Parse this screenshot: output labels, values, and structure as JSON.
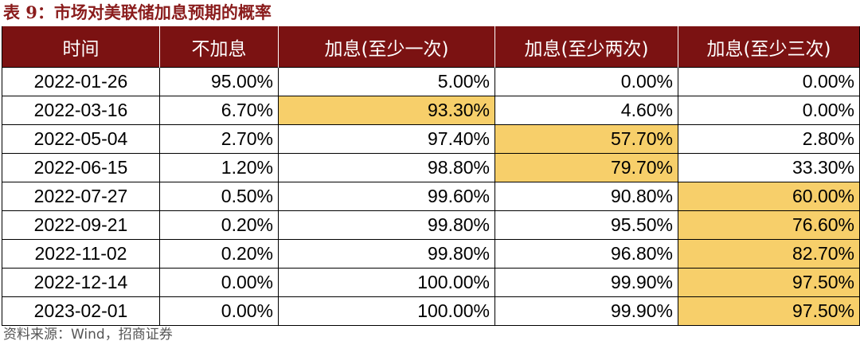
{
  "caption": "表 9：市场对美联储加息预期的概率",
  "source": "资料来源：Wind，招商证券",
  "highlight_color": "#f7cf6a",
  "header_color": "#7b1212",
  "columns": [
    "时间",
    "不加息",
    "加息(至少一次)",
    "加息(至少两次)",
    "加息(至少三次)"
  ],
  "rows": [
    {
      "date": "2022-01-26",
      "values": [
        "95.00%",
        "5.00%",
        "0.00%",
        "0.00%"
      ],
      "highlight": []
    },
    {
      "date": "2022-03-16",
      "values": [
        "6.70%",
        "93.30%",
        "4.60%",
        "0.00%"
      ],
      "highlight": [
        1
      ]
    },
    {
      "date": "2022-05-04",
      "values": [
        "2.70%",
        "97.40%",
        "57.70%",
        "2.80%"
      ],
      "highlight": [
        2
      ]
    },
    {
      "date": "2022-06-15",
      "values": [
        "1.20%",
        "98.80%",
        "79.70%",
        "33.30%"
      ],
      "highlight": [
        2
      ]
    },
    {
      "date": "2022-07-27",
      "values": [
        "0.50%",
        "99.60%",
        "90.80%",
        "60.00%"
      ],
      "highlight": [
        3
      ]
    },
    {
      "date": "2022-09-21",
      "values": [
        "0.20%",
        "99.80%",
        "95.50%",
        "76.60%"
      ],
      "highlight": [
        3
      ]
    },
    {
      "date": "2022-11-02",
      "values": [
        "0.20%",
        "99.80%",
        "96.80%",
        "82.70%"
      ],
      "highlight": [
        3
      ]
    },
    {
      "date": "2022-12-14",
      "values": [
        "0.00%",
        "100.00%",
        "99.90%",
        "97.50%"
      ],
      "highlight": [
        3
      ]
    },
    {
      "date": "2023-02-01",
      "values": [
        "0.00%",
        "100.00%",
        "99.90%",
        "97.50%"
      ],
      "highlight": [
        3
      ]
    }
  ]
}
